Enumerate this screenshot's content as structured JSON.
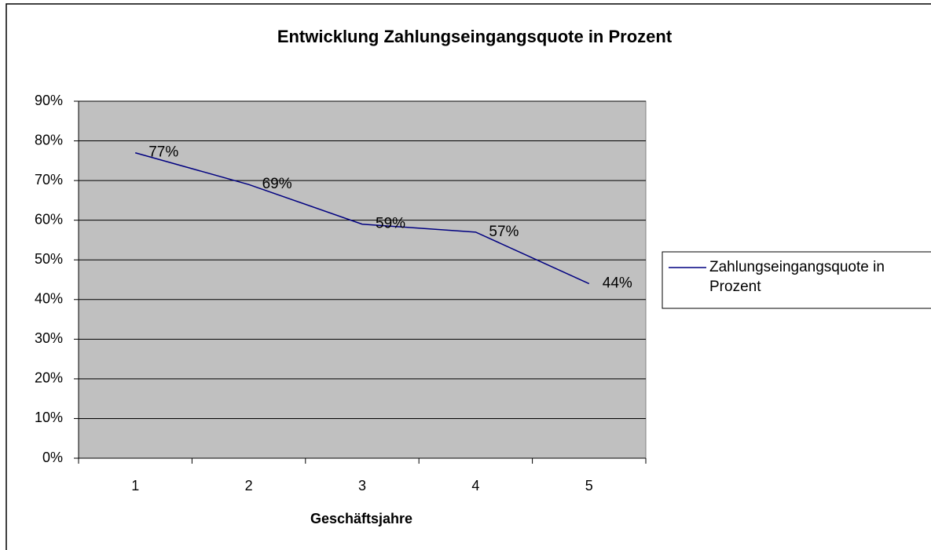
{
  "chart_data": {
    "type": "line",
    "title": "Entwicklung Zahlungseingangsquote in Prozent",
    "x_label": "Geschäftsjahre",
    "categories": [
      "1",
      "2",
      "3",
      "4",
      "5"
    ],
    "series": [
      {
        "name": "Zahlungseingangsquote in Prozent",
        "color": "#000080",
        "values": [
          77,
          69,
          59,
          57,
          44
        ],
        "value_labels": [
          "77%",
          "69%",
          "59%",
          "57%",
          "44%"
        ]
      }
    ],
    "ylim": [
      0,
      90
    ],
    "yticks": [
      {
        "value": 0,
        "label": "0%"
      },
      {
        "value": 10,
        "label": "10%"
      },
      {
        "value": 20,
        "label": "20%"
      },
      {
        "value": 30,
        "label": "30%"
      },
      {
        "value": 40,
        "label": "40%"
      },
      {
        "value": 50,
        "label": "50%"
      },
      {
        "value": 60,
        "label": "60%"
      },
      {
        "value": 70,
        "label": "70%"
      },
      {
        "value": 80,
        "label": "80%"
      },
      {
        "value": 90,
        "label": "90%"
      }
    ],
    "grid": true,
    "legend": "right",
    "plot_background": "#c0c0c0"
  }
}
